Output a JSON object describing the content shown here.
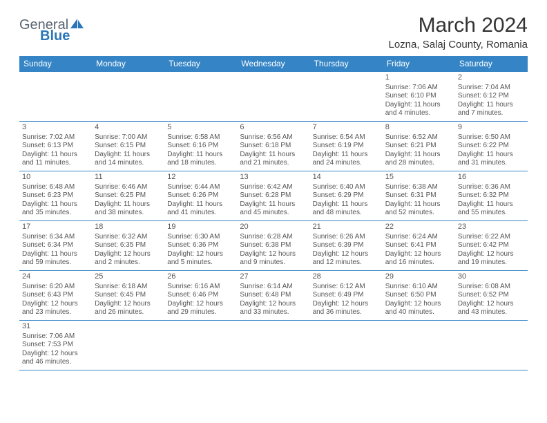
{
  "logo": {
    "text1": "General",
    "text2": "Blue"
  },
  "title": "March 2024",
  "location": "Lozna, Salaj County, Romania",
  "colors": {
    "header_bg": "#3585c6",
    "header_text": "#ffffff",
    "border": "#3585c6",
    "cell_text": "#555555",
    "title_color": "#333333",
    "logo_gray": "#5a6570",
    "logo_blue": "#2a76b8"
  },
  "weekdays": [
    "Sunday",
    "Monday",
    "Tuesday",
    "Wednesday",
    "Thursday",
    "Friday",
    "Saturday"
  ],
  "weeks": [
    [
      null,
      null,
      null,
      null,
      null,
      {
        "d": "1",
        "sr": "7:06 AM",
        "ss": "6:10 PM",
        "dl": "11 hours and 4 minutes."
      },
      {
        "d": "2",
        "sr": "7:04 AM",
        "ss": "6:12 PM",
        "dl": "11 hours and 7 minutes."
      }
    ],
    [
      {
        "d": "3",
        "sr": "7:02 AM",
        "ss": "6:13 PM",
        "dl": "11 hours and 11 minutes."
      },
      {
        "d": "4",
        "sr": "7:00 AM",
        "ss": "6:15 PM",
        "dl": "11 hours and 14 minutes."
      },
      {
        "d": "5",
        "sr": "6:58 AM",
        "ss": "6:16 PM",
        "dl": "11 hours and 18 minutes."
      },
      {
        "d": "6",
        "sr": "6:56 AM",
        "ss": "6:18 PM",
        "dl": "11 hours and 21 minutes."
      },
      {
        "d": "7",
        "sr": "6:54 AM",
        "ss": "6:19 PM",
        "dl": "11 hours and 24 minutes."
      },
      {
        "d": "8",
        "sr": "6:52 AM",
        "ss": "6:21 PM",
        "dl": "11 hours and 28 minutes."
      },
      {
        "d": "9",
        "sr": "6:50 AM",
        "ss": "6:22 PM",
        "dl": "11 hours and 31 minutes."
      }
    ],
    [
      {
        "d": "10",
        "sr": "6:48 AM",
        "ss": "6:23 PM",
        "dl": "11 hours and 35 minutes."
      },
      {
        "d": "11",
        "sr": "6:46 AM",
        "ss": "6:25 PM",
        "dl": "11 hours and 38 minutes."
      },
      {
        "d": "12",
        "sr": "6:44 AM",
        "ss": "6:26 PM",
        "dl": "11 hours and 41 minutes."
      },
      {
        "d": "13",
        "sr": "6:42 AM",
        "ss": "6:28 PM",
        "dl": "11 hours and 45 minutes."
      },
      {
        "d": "14",
        "sr": "6:40 AM",
        "ss": "6:29 PM",
        "dl": "11 hours and 48 minutes."
      },
      {
        "d": "15",
        "sr": "6:38 AM",
        "ss": "6:31 PM",
        "dl": "11 hours and 52 minutes."
      },
      {
        "d": "16",
        "sr": "6:36 AM",
        "ss": "6:32 PM",
        "dl": "11 hours and 55 minutes."
      }
    ],
    [
      {
        "d": "17",
        "sr": "6:34 AM",
        "ss": "6:34 PM",
        "dl": "11 hours and 59 minutes."
      },
      {
        "d": "18",
        "sr": "6:32 AM",
        "ss": "6:35 PM",
        "dl": "12 hours and 2 minutes."
      },
      {
        "d": "19",
        "sr": "6:30 AM",
        "ss": "6:36 PM",
        "dl": "12 hours and 5 minutes."
      },
      {
        "d": "20",
        "sr": "6:28 AM",
        "ss": "6:38 PM",
        "dl": "12 hours and 9 minutes."
      },
      {
        "d": "21",
        "sr": "6:26 AM",
        "ss": "6:39 PM",
        "dl": "12 hours and 12 minutes."
      },
      {
        "d": "22",
        "sr": "6:24 AM",
        "ss": "6:41 PM",
        "dl": "12 hours and 16 minutes."
      },
      {
        "d": "23",
        "sr": "6:22 AM",
        "ss": "6:42 PM",
        "dl": "12 hours and 19 minutes."
      }
    ],
    [
      {
        "d": "24",
        "sr": "6:20 AM",
        "ss": "6:43 PM",
        "dl": "12 hours and 23 minutes."
      },
      {
        "d": "25",
        "sr": "6:18 AM",
        "ss": "6:45 PM",
        "dl": "12 hours and 26 minutes."
      },
      {
        "d": "26",
        "sr": "6:16 AM",
        "ss": "6:46 PM",
        "dl": "12 hours and 29 minutes."
      },
      {
        "d": "27",
        "sr": "6:14 AM",
        "ss": "6:48 PM",
        "dl": "12 hours and 33 minutes."
      },
      {
        "d": "28",
        "sr": "6:12 AM",
        "ss": "6:49 PM",
        "dl": "12 hours and 36 minutes."
      },
      {
        "d": "29",
        "sr": "6:10 AM",
        "ss": "6:50 PM",
        "dl": "12 hours and 40 minutes."
      },
      {
        "d": "30",
        "sr": "6:08 AM",
        "ss": "6:52 PM",
        "dl": "12 hours and 43 minutes."
      }
    ],
    [
      {
        "d": "31",
        "sr": "7:06 AM",
        "ss": "7:53 PM",
        "dl": "12 hours and 46 minutes."
      },
      null,
      null,
      null,
      null,
      null,
      null
    ]
  ],
  "labels": {
    "sunrise": "Sunrise:",
    "sunset": "Sunset:",
    "daylight": "Daylight:"
  }
}
